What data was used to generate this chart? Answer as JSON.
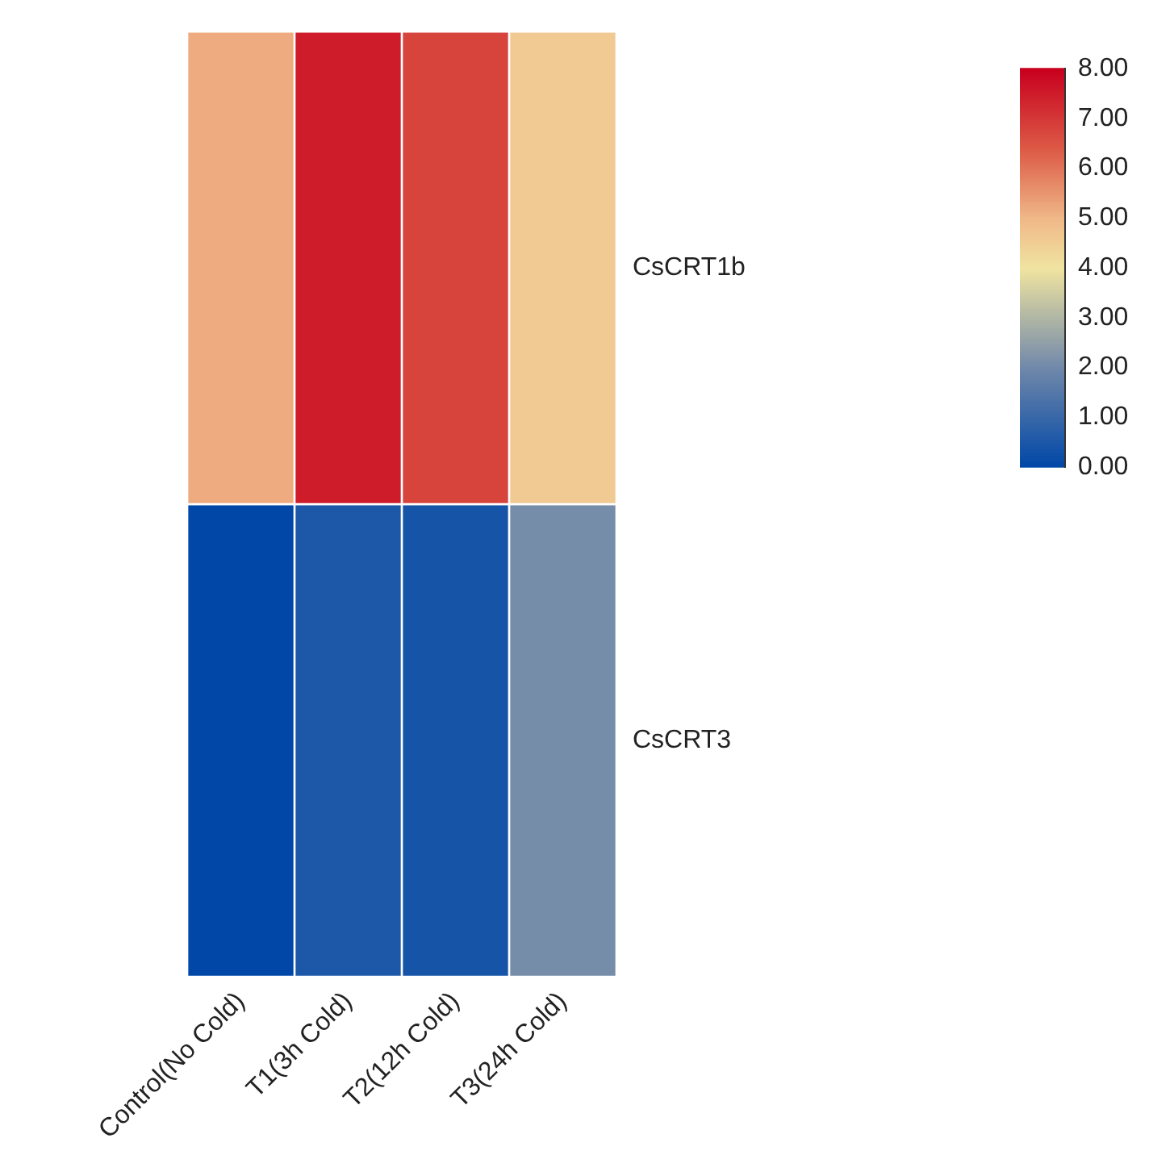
{
  "chart_data": {
    "type": "heatmap",
    "categories": [
      "Control(No Cold)",
      "T1(3h Cold)",
      "T2(12h Cold)",
      "T3(24h Cold)"
    ],
    "y_categories": [
      "CsCRT1b",
      "CsCRT3"
    ],
    "cells": [
      [
        5.2,
        7.5,
        6.8,
        4.6
      ],
      [
        0.0,
        0.5,
        0.4,
        2.1
      ]
    ],
    "clim": [
      0,
      8
    ],
    "cticks": [
      {
        "value": 0,
        "label": "0.00"
      },
      {
        "value": 1,
        "label": "1.00"
      },
      {
        "value": 2,
        "label": "2.00"
      },
      {
        "value": 3,
        "label": "3.00"
      },
      {
        "value": 4,
        "label": "4.00"
      },
      {
        "value": 5,
        "label": "5.00"
      },
      {
        "value": 6,
        "label": "6.00"
      },
      {
        "value": 7,
        "label": "7.00"
      },
      {
        "value": 8,
        "label": "8.00"
      }
    ]
  }
}
